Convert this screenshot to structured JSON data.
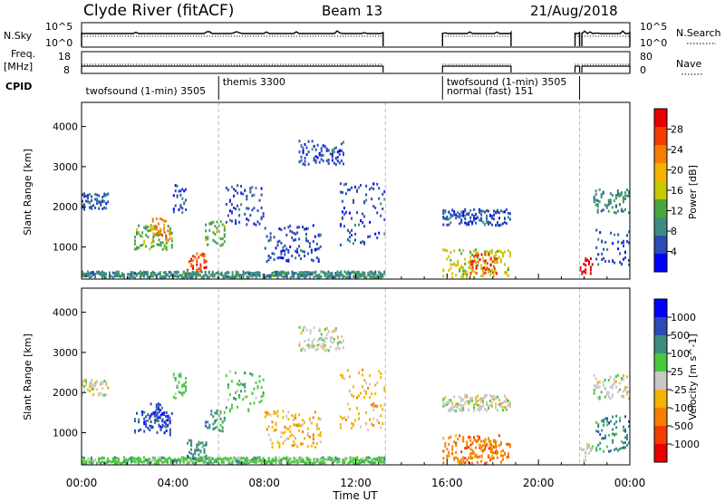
{
  "header": {
    "title": "Clyde River (fitACF)",
    "beam": "Beam 13",
    "date": "21/Aug/2018"
  },
  "strips": {
    "nsky_label": "N.Sky",
    "nsky_ticks": [
      "10^5",
      "10^0"
    ],
    "nsearch_label": "N.Search",
    "nsearch_ticks": [
      "10^5",
      "10^0"
    ],
    "freq_label_line1": "Freq.",
    "freq_label_line2": "[MHz]",
    "freq_ticks": [
      "18",
      "8"
    ],
    "nave_label": "Nave",
    "nave_ticks": [
      "80",
      "0"
    ],
    "cpid_label": "CPID",
    "segments_hours": [
      [
        0,
        13.2
      ],
      [
        15.8,
        18.8
      ],
      [
        21.6,
        21.8
      ],
      [
        21.9,
        24
      ]
    ],
    "cpid_boundaries_hours": [
      6.0,
      15.8,
      21.8
    ],
    "cpid_labels": [
      {
        "text": "twofsound (1-min) 3505",
        "hour": 0.1,
        "row": 2
      },
      {
        "text": "themis 3300",
        "hour": 6.1,
        "row": 1
      },
      {
        "text": "twofsound (1-min) 3505",
        "hour": 15.9,
        "row": 1
      },
      {
        "text": "normal (fast) 151",
        "hour": 15.9,
        "row": 2
      }
    ]
  },
  "chart_data": [
    {
      "type": "heatmap",
      "name": "power",
      "xlabel": "",
      "ylabel": "Slant Range [km]",
      "xlim": [
        0,
        24
      ],
      "ylim": [
        200,
        4600
      ],
      "yticks": [
        1000,
        2000,
        3000,
        4000
      ],
      "colorbar_label": "Power [dB]",
      "colorbar_ticks": [
        "4",
        "8",
        "12",
        "16",
        "20",
        "24",
        "28"
      ],
      "colors": [
        "#0000ff",
        "#2b4bb5",
        "#3c8c82",
        "#4aa63c",
        "#c8c800",
        "#f3b300",
        "#f37f00",
        "#f03c00",
        "#e60000"
      ],
      "regions": [
        {
          "t0": 0.0,
          "t1": 13.3,
          "r0": 200,
          "r1": 350,
          "level": 2
        },
        {
          "t0": 0.0,
          "t1": 1.2,
          "r0": 1900,
          "r1": 2300,
          "level": 1
        },
        {
          "t0": 2.3,
          "t1": 4.0,
          "r0": 900,
          "r1": 1500,
          "level": 3
        },
        {
          "t0": 3.0,
          "t1": 3.9,
          "r0": 1100,
          "r1": 1700,
          "level": 6
        },
        {
          "t0": 4.0,
          "t1": 4.6,
          "r0": 1800,
          "r1": 2500,
          "level": 1
        },
        {
          "t0": 4.6,
          "t1": 5.5,
          "r0": 300,
          "r1": 800,
          "level": 7
        },
        {
          "t0": 5.4,
          "t1": 6.3,
          "r0": 1000,
          "r1": 1600,
          "level": 3
        },
        {
          "t0": 6.3,
          "t1": 8.0,
          "r0": 1500,
          "r1": 2500,
          "level": 1
        },
        {
          "t0": 8.0,
          "t1": 10.5,
          "r0": 600,
          "r1": 1500,
          "level": 1
        },
        {
          "t0": 9.5,
          "t1": 11.5,
          "r0": 3000,
          "r1": 3600,
          "level": 1
        },
        {
          "t0": 11.3,
          "t1": 13.3,
          "r0": 1000,
          "r1": 2600,
          "level": 1
        },
        {
          "t0": 15.8,
          "t1": 18.8,
          "r0": 1500,
          "r1": 1900,
          "level": 1
        },
        {
          "t0": 15.8,
          "t1": 18.8,
          "r0": 200,
          "r1": 900,
          "level": 4
        },
        {
          "t0": 17.0,
          "t1": 18.2,
          "r0": 300,
          "r1": 800,
          "level": 7
        },
        {
          "t0": 21.8,
          "t1": 22.4,
          "r0": 250,
          "r1": 700,
          "level": 8
        },
        {
          "t0": 22.4,
          "t1": 24.0,
          "r0": 1800,
          "r1": 2400,
          "level": 2
        },
        {
          "t0": 22.5,
          "t1": 24.0,
          "r0": 500,
          "r1": 1400,
          "level": 1
        }
      ]
    },
    {
      "type": "heatmap",
      "name": "velocity",
      "xlabel": "Time UT",
      "ylabel": "Slant Range [km]",
      "xlim": [
        0,
        24
      ],
      "ylim": [
        200,
        4600
      ],
      "yticks": [
        1000,
        2000,
        3000,
        4000
      ],
      "xticks": [
        "00:00",
        "04:00",
        "08:00",
        "12:00",
        "16:00",
        "20:00",
        "00:00"
      ],
      "colorbar_label": "Velocity [m s^-1]",
      "colorbar_ticks": [
        "-1000",
        "-500",
        "-100",
        "-25",
        "25",
        "100",
        "500",
        "1000"
      ],
      "colors": [
        "#e60000",
        "#f03c00",
        "#f37f00",
        "#f3b300",
        "#c8c8c8",
        "#4ac83c",
        "#3c8c82",
        "#2b4bb5",
        "#0000ff"
      ],
      "regions": [
        {
          "t0": 0.0,
          "t1": 13.3,
          "r0": 200,
          "r1": 350,
          "level": 5
        },
        {
          "t0": 0.0,
          "t1": 1.2,
          "r0": 1900,
          "r1": 2300,
          "level": 4
        },
        {
          "t0": 2.3,
          "t1": 4.0,
          "r0": 900,
          "r1": 1500,
          "level": 7
        },
        {
          "t0": 3.0,
          "t1": 3.9,
          "r0": 1100,
          "r1": 1700,
          "level": 7
        },
        {
          "t0": 4.0,
          "t1": 4.6,
          "r0": 1800,
          "r1": 2500,
          "level": 5
        },
        {
          "t0": 4.6,
          "t1": 5.5,
          "r0": 300,
          "r1": 800,
          "level": 6
        },
        {
          "t0": 5.4,
          "t1": 6.3,
          "r0": 1000,
          "r1": 1600,
          "level": 6
        },
        {
          "t0": 6.3,
          "t1": 8.0,
          "r0": 1500,
          "r1": 2500,
          "level": 5
        },
        {
          "t0": 8.0,
          "t1": 10.5,
          "r0": 600,
          "r1": 1500,
          "level": 3
        },
        {
          "t0": 9.5,
          "t1": 11.5,
          "r0": 3000,
          "r1": 3600,
          "level": 4
        },
        {
          "t0": 11.3,
          "t1": 13.3,
          "r0": 1000,
          "r1": 2600,
          "level": 3
        },
        {
          "t0": 15.8,
          "t1": 18.8,
          "r0": 1500,
          "r1": 1900,
          "level": 4
        },
        {
          "t0": 15.8,
          "t1": 18.8,
          "r0": 200,
          "r1": 900,
          "level": 2
        },
        {
          "t0": 17.0,
          "t1": 18.2,
          "r0": 300,
          "r1": 800,
          "level": 2
        },
        {
          "t0": 21.8,
          "t1": 22.4,
          "r0": 250,
          "r1": 700,
          "level": 4
        },
        {
          "t0": 22.4,
          "t1": 24.0,
          "r0": 1800,
          "r1": 2400,
          "level": 4
        },
        {
          "t0": 22.5,
          "t1": 24.0,
          "r0": 500,
          "r1": 1400,
          "level": 6
        }
      ]
    }
  ]
}
